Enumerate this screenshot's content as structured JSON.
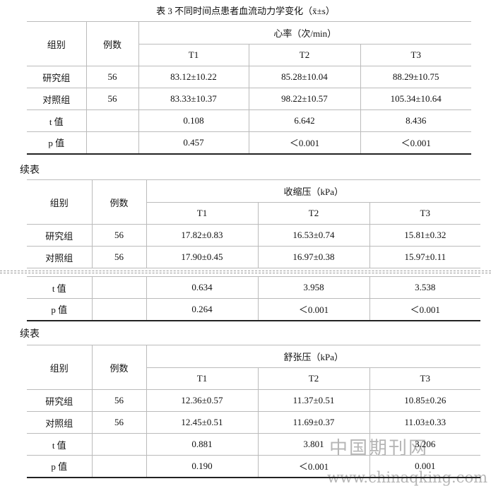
{
  "title": "表 3 不同时间点患者血流动力学变化（x̄±s）",
  "continued_labels": [
    "续表",
    "续表"
  ],
  "tables": [
    {
      "header": {
        "group": "组别",
        "count": "例数",
        "measure": "心率（次/min）",
        "times": [
          "T1",
          "T2",
          "T3"
        ]
      },
      "rows": [
        {
          "label": "研究组",
          "n": "56",
          "values": [
            "83.12±10.22",
            "85.28±10.04",
            "88.29±10.75"
          ]
        },
        {
          "label": "对照组",
          "n": "56",
          "values": [
            "83.33±10.37",
            "98.22±10.57",
            "105.34±10.64"
          ]
        },
        {
          "label": "t 值",
          "values": [
            "0.108",
            "6.642",
            "8.436"
          ]
        },
        {
          "label": "p 值",
          "values": [
            "0.457",
            "＜0.001",
            "＜0.001"
          ]
        }
      ]
    },
    {
      "header": {
        "group": "组别",
        "count": "例数",
        "measure": "收缩压（kPa）",
        "times": [
          "T1",
          "T2",
          "T3"
        ]
      },
      "rows": [
        {
          "label": "研究组",
          "n": "56",
          "values": [
            "17.82±0.83",
            "16.53±0.74",
            "15.81±0.32"
          ]
        },
        {
          "label": "对照组",
          "n": "56",
          "values": [
            "17.90±0.45",
            "16.97±0.38",
            "15.97±0.11"
          ]
        },
        {
          "label": "t 值",
          "values": [
            "0.634",
            "3.958",
            "3.538"
          ]
        },
        {
          "label": "p 值",
          "values": [
            "0.264",
            "＜0.001",
            "＜0.001"
          ]
        }
      ]
    },
    {
      "header": {
        "group": "组别",
        "count": "例数",
        "measure": "舒张压（kPa）",
        "times": [
          "T1",
          "T2",
          "T3"
        ]
      },
      "rows": [
        {
          "label": "研究组",
          "n": "56",
          "values": [
            "12.36±0.57",
            "11.37±0.51",
            "10.85±0.26"
          ]
        },
        {
          "label": "对照组",
          "n": "56",
          "values": [
            "12.45±0.51",
            "11.69±0.37",
            "11.03±0.33"
          ]
        },
        {
          "label": "t 值",
          "values": [
            "0.881",
            "3.801",
            "3.206"
          ]
        },
        {
          "label": "p 值",
          "values": [
            "0.190",
            "＜0.001",
            "0.001"
          ]
        }
      ]
    }
  ],
  "watermark": {
    "title": "中国期刊网",
    "url": "www.chinaqking.com"
  }
}
